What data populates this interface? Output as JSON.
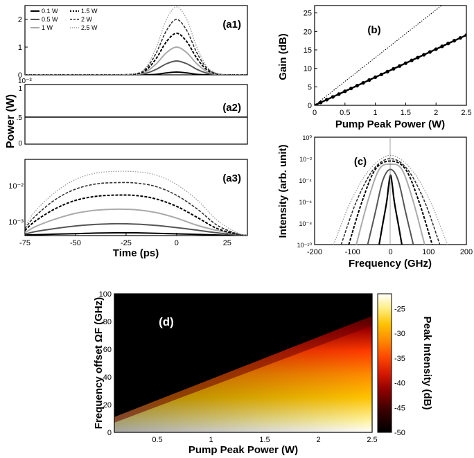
{
  "figure": {
    "shared_ylabel": "Power (W)",
    "colors": {
      "series": [
        "#000000",
        "#555555",
        "#aaaaaa",
        "#000000",
        "#333333",
        "#999999"
      ],
      "d_colormap": [
        "#000000",
        "#3a0000",
        "#8b0000",
        "#d21800",
        "#ff4a00",
        "#ff8800",
        "#ffc200",
        "#fff08a",
        "#ffffff"
      ]
    }
  },
  "chart_data": [
    {
      "id": "a1",
      "type": "line",
      "panel_label": "(a1)",
      "xlim": [
        -75,
        35
      ],
      "ylim": [
        0,
        2.5
      ],
      "yticks": [
        "0",
        "1",
        "2"
      ],
      "legend_placement": "top-left",
      "series": [
        {
          "name": "0.1 W",
          "style": "solid",
          "x": [
            -75,
            -60,
            -45,
            -30,
            -20,
            -15,
            -10,
            -5,
            0,
            5,
            10,
            15,
            20,
            25,
            35
          ],
          "values": [
            0,
            0,
            0,
            0,
            0,
            0.002,
            0.02,
            0.07,
            0.1,
            0.07,
            0.02,
            0.002,
            0,
            0,
            0
          ]
        },
        {
          "name": "0.5 W",
          "style": "solid",
          "x": [
            -75,
            -60,
            -45,
            -30,
            -20,
            -15,
            -10,
            -5,
            0,
            5,
            10,
            15,
            20,
            25,
            35
          ],
          "values": [
            0,
            0,
            0,
            0,
            0.01,
            0.06,
            0.2,
            0.4,
            0.5,
            0.4,
            0.2,
            0.06,
            0.01,
            0,
            0
          ]
        },
        {
          "name": "1 W",
          "style": "solid",
          "x": [
            -75,
            -60,
            -45,
            -30,
            -20,
            -15,
            -10,
            -5,
            0,
            5,
            10,
            15,
            20,
            25,
            35
          ],
          "values": [
            0,
            0,
            0,
            0,
            0.02,
            0.12,
            0.4,
            0.8,
            1.0,
            0.8,
            0.4,
            0.12,
            0.02,
            0,
            0
          ]
        },
        {
          "name": "1.5 W",
          "style": "dashed",
          "x": [
            -75,
            -60,
            -45,
            -30,
            -20,
            -15,
            -10,
            -5,
            0,
            5,
            10,
            15,
            20,
            25,
            35
          ],
          "values": [
            0,
            0,
            0,
            0,
            0.03,
            0.18,
            0.6,
            1.2,
            1.5,
            1.2,
            0.6,
            0.18,
            0.03,
            0,
            0
          ]
        },
        {
          "name": "2 W",
          "style": "dashed",
          "x": [
            -75,
            -60,
            -45,
            -30,
            -20,
            -15,
            -10,
            -5,
            0,
            5,
            10,
            15,
            20,
            25,
            35
          ],
          "values": [
            0,
            0,
            0,
            0,
            0.04,
            0.24,
            0.8,
            1.6,
            2.0,
            1.6,
            0.8,
            0.24,
            0.04,
            0,
            0
          ]
        },
        {
          "name": "2.5 W",
          "style": "dotted",
          "x": [
            -75,
            -60,
            -45,
            -30,
            -20,
            -15,
            -10,
            -5,
            0,
            5,
            10,
            15,
            20,
            25,
            35
          ],
          "values": [
            0,
            0,
            0,
            0,
            0.05,
            0.3,
            1.0,
            2.0,
            2.45,
            2.0,
            1.0,
            0.3,
            0.05,
            0,
            0
          ]
        }
      ]
    },
    {
      "id": "a2",
      "type": "line",
      "panel_label": "(a2)",
      "xlim": [
        -75,
        35
      ],
      "ylim": [
        0,
        1
      ],
      "yticks_labels": [
        "0",
        ".5",
        "1"
      ],
      "y_exponent": "10⁻³",
      "series": [
        {
          "name": "",
          "x": [
            -75,
            35
          ],
          "values": [
            0.5,
            0.5
          ]
        }
      ]
    },
    {
      "id": "a3",
      "type": "line",
      "panel_label": "(a3)",
      "xlim": [
        -75,
        35
      ],
      "ylim": [
        0.0005,
        0.08
      ],
      "scale": "log",
      "yticks": [
        "10⁻³",
        "10⁻²"
      ],
      "xticks": [
        "-75",
        "-50",
        "-25",
        "0",
        "25"
      ],
      "xlabel": "Time (ps)",
      "series": [
        {
          "name": "0.1 W",
          "style": "solid",
          "x": [
            -75,
            -70,
            -60,
            -50,
            -40,
            -30,
            -20,
            -10,
            0,
            10,
            20,
            30,
            35
          ],
          "values": [
            0.00052,
            0.00053,
            0.00055,
            0.00057,
            0.00059,
            0.0006,
            0.0006,
            0.00058,
            0.00056,
            0.00054,
            0.00052,
            0.0005,
            0.0005
          ]
        },
        {
          "name": "0.5 W",
          "style": "solid",
          "x": [
            -75,
            -70,
            -60,
            -50,
            -40,
            -30,
            -20,
            -10,
            0,
            10,
            20,
            30,
            35
          ],
          "values": [
            0.00055,
            0.00065,
            0.0008,
            0.00095,
            0.00105,
            0.0011,
            0.00107,
            0.00098,
            0.00085,
            0.00072,
            0.0006,
            0.00052,
            0.0005
          ]
        },
        {
          "name": "1 W",
          "style": "solid",
          "x": [
            -75,
            -70,
            -60,
            -50,
            -40,
            -30,
            -20,
            -10,
            0,
            10,
            20,
            30,
            35
          ],
          "values": [
            0.0006,
            0.0009,
            0.0015,
            0.0022,
            0.0027,
            0.0029,
            0.0028,
            0.0023,
            0.0016,
            0.001,
            0.0007,
            0.00055,
            0.0005
          ]
        },
        {
          "name": "1.5 W",
          "style": "dashed",
          "x": [
            -75,
            -70,
            -60,
            -50,
            -40,
            -30,
            -20,
            -10,
            0,
            10,
            20,
            30,
            35
          ],
          "values": [
            0.0007,
            0.0013,
            0.003,
            0.0052,
            0.0068,
            0.0074,
            0.0072,
            0.0057,
            0.0035,
            0.0017,
            0.0008,
            0.00055,
            0.0005
          ]
        },
        {
          "name": "2 W",
          "style": "dashed",
          "x": [
            -75,
            -70,
            -60,
            -50,
            -40,
            -30,
            -20,
            -10,
            0,
            10,
            20,
            30,
            35
          ],
          "values": [
            0.0008,
            0.0018,
            0.0055,
            0.011,
            0.0155,
            0.017,
            0.0165,
            0.013,
            0.0073,
            0.003,
            0.001,
            0.00056,
            0.0005
          ]
        },
        {
          "name": "2.5 W",
          "style": "dotted",
          "x": [
            -75,
            -70,
            -60,
            -50,
            -40,
            -30,
            -20,
            -10,
            0,
            10,
            20,
            30,
            35
          ],
          "values": [
            0.0009,
            0.0025,
            0.009,
            0.021,
            0.032,
            0.036,
            0.035,
            0.028,
            0.015,
            0.0055,
            0.0014,
            0.0006,
            0.0005
          ]
        }
      ]
    },
    {
      "id": "b",
      "type": "line",
      "panel_label": "(b)",
      "xlim": [
        0,
        2.5
      ],
      "ylim": [
        0,
        27
      ],
      "xticks": [
        "0",
        "0.5",
        "1",
        "1.5",
        "2",
        "2.5"
      ],
      "yticks": [
        "0",
        "5",
        "10",
        "15",
        "20",
        "25"
      ],
      "xlabel": "Pump Peak Power (W)",
      "ylabel": "Gain (dB)",
      "series": [
        {
          "name": "",
          "style": "solid-markers",
          "x": [
            0,
            0.1,
            0.2,
            0.3,
            0.4,
            0.5,
            0.6,
            0.7,
            0.8,
            0.9,
            1.0,
            1.1,
            1.2,
            1.3,
            1.4,
            1.5,
            1.6,
            1.7,
            1.8,
            1.9,
            2.0,
            2.1,
            2.2,
            2.3,
            2.4,
            2.5
          ],
          "values": [
            0,
            0.76,
            1.52,
            2.28,
            3.04,
            3.8,
            4.56,
            5.32,
            6.08,
            6.84,
            7.6,
            8.36,
            9.12,
            9.88,
            10.64,
            11.4,
            12.16,
            12.92,
            13.68,
            14.44,
            15.2,
            15.96,
            16.72,
            17.48,
            18.24,
            19
          ]
        },
        {
          "name": "",
          "style": "dotted",
          "x": [
            0,
            2.09
          ],
          "values": [
            0,
            27
          ]
        }
      ]
    },
    {
      "id": "c",
      "type": "line",
      "panel_label": "(c)",
      "xlim": [
        -200,
        200
      ],
      "ylim": [
        1e-10,
        1
      ],
      "scale": "log",
      "xticks": [
        "-200",
        "-100",
        "0",
        "100",
        "200"
      ],
      "yticks": [
        "10⁻¹⁰",
        "10⁻⁸",
        "10⁻⁶",
        "10⁻⁴",
        "10⁻²",
        "10⁰"
      ],
      "xlabel": "Frequency (GHz)",
      "ylabel": "Intensity (arb. unit)",
      "series": [
        {
          "name": "0.1 W",
          "style": "solid",
          "x": [
            -30,
            -20,
            -10,
            -5,
            0,
            5,
            10,
            20,
            30
          ],
          "values": [
            1e-10,
            1e-08,
            1e-06,
            3e-05,
            0.0003,
            3e-05,
            1e-06,
            1e-08,
            1e-10
          ]
        },
        {
          "name": "0.5 W",
          "style": "solid",
          "x": [
            -60,
            -40,
            -20,
            0,
            20,
            40,
            60
          ],
          "values": [
            1e-10,
            1e-07,
            0.0001,
            0.001,
            0.0001,
            1e-07,
            1e-10
          ]
        },
        {
          "name": "1 W",
          "style": "solid",
          "x": [
            -90,
            -60,
            -30,
            0,
            30,
            60,
            90
          ],
          "values": [
            1e-10,
            1e-06,
            0.001,
            0.003,
            0.001,
            1e-06,
            1e-10
          ]
        },
        {
          "name": "1.5 W",
          "style": "dashed",
          "x": [
            -110,
            -75,
            -40,
            0,
            40,
            75,
            110
          ],
          "values": [
            1e-10,
            1e-06,
            0.001,
            0.006,
            0.001,
            1e-06,
            1e-10
          ]
        },
        {
          "name": "2 W",
          "style": "dashed",
          "x": [
            -130,
            -90,
            -45,
            0,
            45,
            90,
            130
          ],
          "values": [
            1e-10,
            1e-06,
            0.001,
            0.01,
            0.001,
            1e-06,
            1e-10
          ]
        },
        {
          "name": "2.5 W",
          "style": "dotted",
          "x": [
            -150,
            -105,
            -55,
            0,
            55,
            105,
            150
          ],
          "values": [
            1e-10,
            1e-06,
            0.001,
            0.02,
            0.001,
            1e-06,
            1e-10
          ]
        }
      ]
    },
    {
      "id": "d",
      "type": "heatmap",
      "panel_label": "(d)",
      "xlim": [
        0.1,
        2.5
      ],
      "ylim": [
        0,
        100
      ],
      "xticks": [
        "0.5",
        "1",
        "1.5",
        "2",
        "2.5"
      ],
      "yticks": [
        "0",
        "20",
        "40",
        "60",
        "80",
        "100"
      ],
      "xlabel": "Pump Peak Power (W)",
      "ylabel": "Frequency offset ΩF (GHz)",
      "colorbar": {
        "label": "Peak Intensity (dB)",
        "range": [
          -50,
          -22
        ],
        "ticks": [
          "-25",
          "-30",
          "-35",
          "-40",
          "-45",
          "-50"
        ]
      },
      "description_values": {
        "edge_offset_at_min_power_GHz": 11,
        "edge_offset_at_max_power_GHz": 84
      }
    }
  ]
}
